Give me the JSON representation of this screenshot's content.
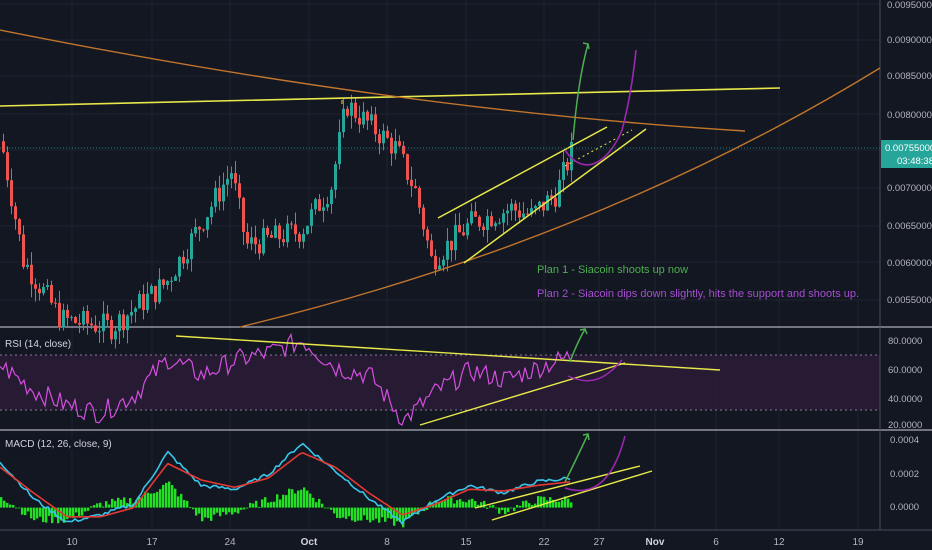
{
  "colors": {
    "background": "#131722",
    "grid": "#2a2e39",
    "bull": "#26a69a",
    "bear": "#ef5350",
    "trend_yellow": "#e8e84a",
    "trend_orange": "#c2752b",
    "plan1_green": "#4caf50",
    "plan2_purple": "#9c27b0",
    "rsi_line": "#d54ee0",
    "rsi_band": "#2d1d3a",
    "macd_line": "#39c6ea",
    "signal_line": "#e53935",
    "hist_pos": "#22e022",
    "price_badge": "#26a69a",
    "axis_text": "#b2b5be"
  },
  "price_axis": {
    "labels": [
      "0.00950000",
      "0.00900000",
      "0.00850000",
      "0.00800000",
      "0.00700000",
      "0.00650000",
      "0.00600000",
      "0.00550000"
    ],
    "current_price": "0.00755000",
    "countdown": "03:48:38"
  },
  "annotations": {
    "plan1": "Plan 1 - Siacoin shoots up now",
    "plan2": "Plan 2 - Siacoin dips down slightly, hits the support and shoots up."
  },
  "rsi": {
    "title": "RSI (14, close)",
    "axis_labels": [
      "80.0000",
      "60.0000",
      "40.0000",
      "20.0000"
    ],
    "upper_band": 70,
    "lower_band": 30
  },
  "macd": {
    "title": "MACD (12, 26, close, 9)",
    "axis_labels": [
      "0.0004",
      "0.0002",
      "0.0000"
    ]
  },
  "time_axis": {
    "labels": [
      "10",
      "17",
      "24",
      "Oct",
      "8",
      "15",
      "22",
      "27",
      "Nov",
      "6",
      "12",
      "19"
    ]
  },
  "chart_data": [
    {
      "type": "candlestick",
      "title": "",
      "ylim": [
        0.0052,
        0.0096
      ],
      "x": [
        "10",
        "17",
        "24",
        "Oct",
        "8",
        "15",
        "22",
        "27",
        "Nov",
        "6",
        "12",
        "19"
      ],
      "approx_close_path": [
        0.0077,
        0.0061,
        0.0053,
        0.0052,
        0.0058,
        0.0073,
        0.0063,
        0.0065,
        0.0071,
        0.0082,
        0.0076,
        0.007,
        0.0061,
        0.0066,
        0.0068,
        0.0067,
        0.007,
        0.00755
      ],
      "current_price": 0.00755,
      "price_axis_ticks": [
        0.0095,
        0.009,
        0.0085,
        0.008,
        0.0075,
        0.007,
        0.0065,
        0.006,
        0.0055
      ]
    },
    {
      "type": "line",
      "title": "RSI (14, close)",
      "ylim": [
        20,
        85
      ],
      "bands": [
        30,
        70
      ],
      "values": [
        62,
        45,
        35,
        30,
        42,
        66,
        55,
        65,
        70,
        78,
        60,
        55,
        25,
        45,
        58,
        52,
        60,
        68
      ]
    },
    {
      "type": "line",
      "title": "MACD (12, 26, close, 9)",
      "ylim": [
        -0.0001,
        0.0004
      ],
      "series": [
        {
          "name": "MACD",
          "values": [
            0.00025,
            5e-05,
            -8e-05,
            -4e-05,
            2e-05,
            0.0003,
            0.00012,
            0.0001,
            0.00018,
            0.00035,
            0.0002,
            5e-05,
            -8e-05,
            4e-05,
            0.00012,
            8e-05,
            0.00014,
            0.00016
          ]
        },
        {
          "name": "Signal",
          "values": [
            0.00022,
            8e-05,
            -5e-05,
            -5e-05,
            0.0,
            0.00024,
            0.00015,
            0.00011,
            0.00016,
            0.0003,
            0.00022,
            8e-05,
            -4e-05,
            2e-05,
            0.0001,
            9e-05,
            0.00012,
            0.00014
          ]
        }
      ]
    }
  ]
}
